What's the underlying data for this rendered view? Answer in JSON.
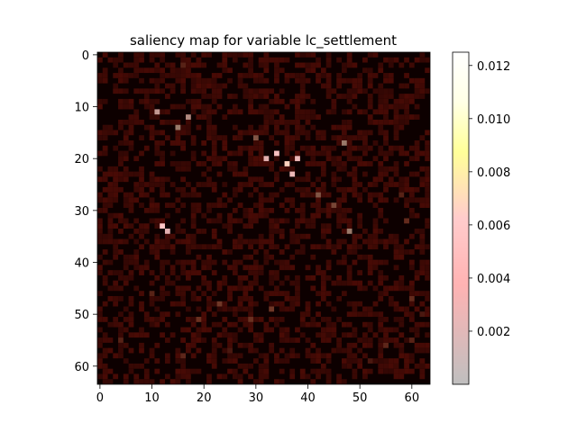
{
  "chart_data": {
    "type": "heatmap",
    "title": "saliency map for variable lc_settlement",
    "xlabel": "",
    "ylabel": "",
    "grid": false,
    "x_range": [
      -0.5,
      63.5
    ],
    "y_range": [
      63.5,
      -0.5
    ],
    "x_ticks": [
      0,
      10,
      20,
      30,
      40,
      50,
      60
    ],
    "y_ticks": [
      0,
      10,
      20,
      30,
      40,
      50,
      60
    ],
    "colorbar": {
      "range": [
        0.0,
        0.0125
      ],
      "ticks": [
        0.002,
        0.004,
        0.006,
        0.008,
        0.01,
        0.012
      ],
      "tick_labels": [
        "0.002",
        "0.004",
        "0.006",
        "0.008",
        "0.010",
        "0.012"
      ],
      "colors": [
        "#bfbfbf",
        "#ffb3b3",
        "#ffcccc",
        "#ffff99",
        "#ffffe6",
        "#ffffff"
      ]
    },
    "image_background": "#0d0000",
    "hotspots": [
      {
        "x": 36,
        "y": 21,
        "value": 0.0065
      },
      {
        "x": 34,
        "y": 19,
        "value": 0.0055
      },
      {
        "x": 38,
        "y": 20,
        "value": 0.005
      },
      {
        "x": 32,
        "y": 20,
        "value": 0.0045
      },
      {
        "x": 37,
        "y": 23,
        "value": 0.005
      },
      {
        "x": 12,
        "y": 33,
        "value": 0.006
      },
      {
        "x": 13,
        "y": 34,
        "value": 0.0045
      },
      {
        "x": 11,
        "y": 11,
        "value": 0.0035
      },
      {
        "x": 17,
        "y": 12,
        "value": 0.003
      },
      {
        "x": 15,
        "y": 14,
        "value": 0.0025
      },
      {
        "x": 47,
        "y": 17,
        "value": 0.0025
      },
      {
        "x": 48,
        "y": 34,
        "value": 0.0025
      },
      {
        "x": 30,
        "y": 16,
        "value": 0.002
      },
      {
        "x": 42,
        "y": 27,
        "value": 0.002
      },
      {
        "x": 45,
        "y": 29,
        "value": 0.0018
      },
      {
        "x": 23,
        "y": 48,
        "value": 0.0016
      },
      {
        "x": 33,
        "y": 49,
        "value": 0.0016
      },
      {
        "x": 29,
        "y": 51,
        "value": 0.0015
      },
      {
        "x": 19,
        "y": 51,
        "value": 0.0015
      },
      {
        "x": 60,
        "y": 47,
        "value": 0.0014
      },
      {
        "x": 59,
        "y": 32,
        "value": 0.0014
      },
      {
        "x": 55,
        "y": 56,
        "value": 0.0013
      },
      {
        "x": 16,
        "y": 58,
        "value": 0.0013
      },
      {
        "x": 4,
        "y": 55,
        "value": 0.0012
      },
      {
        "x": 10,
        "y": 46,
        "value": 0.0012
      },
      {
        "x": 60,
        "y": 55,
        "value": 0.0012
      },
      {
        "x": 16,
        "y": 2,
        "value": 0.0012
      },
      {
        "x": 58,
        "y": 27,
        "value": 0.0012
      },
      {
        "x": 52,
        "y": 59,
        "value": 0.001
      },
      {
        "x": 25,
        "y": 57,
        "value": 0.001
      },
      {
        "x": 62,
        "y": 50,
        "value": 0.001
      }
    ]
  }
}
